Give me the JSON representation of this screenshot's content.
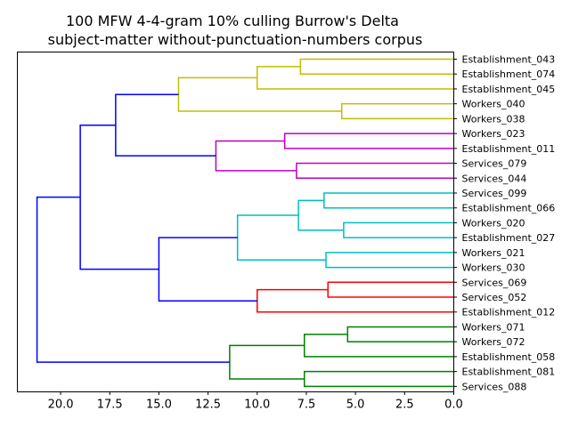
{
  "chart_data": {
    "type": "dendrogram",
    "title": "100 MFW 4-4-gram 10% culling Burrow's Delta",
    "subtitle": "subject-matter without-punctuation-numbers corpus",
    "orientation": "left",
    "xlim": [
      22.2,
      0.0
    ],
    "x_ticks": [
      20.0,
      17.5,
      15.0,
      12.5,
      10.0,
      7.5,
      5.0,
      2.5,
      0.0
    ],
    "x_tick_labels": [
      "20.0",
      "17.5",
      "15.0",
      "12.5",
      "10.0",
      "7.5",
      "5.0",
      "2.5",
      "0.0"
    ],
    "leaves": [
      "Establishment_043",
      "Establishment_074",
      "Establishment_045",
      "Workers_040",
      "Workers_038",
      "Workers_023",
      "Establishment_011",
      "Services_079",
      "Services_044",
      "Services_099",
      "Establishment_066",
      "Workers_020",
      "Establishment_027",
      "Workers_021",
      "Workers_030",
      "Services_069",
      "Services_052",
      "Establishment_012",
      "Workers_071",
      "Workers_072",
      "Establishment_058",
      "Establishment_081",
      "Services_088"
    ],
    "merges": [
      {
        "a": "L0",
        "b": "L1",
        "height": 7.8,
        "color": "#bfbf00"
      },
      {
        "a": "M0",
        "b": "L2",
        "height": 10.0,
        "color": "#bfbf00"
      },
      {
        "a": "L3",
        "b": "L4",
        "height": 5.7,
        "color": "#bfbf00"
      },
      {
        "a": "M1",
        "b": "M2",
        "height": 14.0,
        "color": "#bfbf00"
      },
      {
        "a": "L5",
        "b": "L6",
        "height": 8.6,
        "color": "#bf00bf"
      },
      {
        "a": "L7",
        "b": "L8",
        "height": 8.0,
        "color": "#bf00bf"
      },
      {
        "a": "M4",
        "b": "M5",
        "height": 12.1,
        "color": "#bf00bf"
      },
      {
        "a": "M3",
        "b": "M6",
        "height": 17.2,
        "color": "#0000ff"
      },
      {
        "a": "L9",
        "b": "L10",
        "height": 6.6,
        "color": "#00bfbf"
      },
      {
        "a": "L11",
        "b": "L12",
        "height": 5.6,
        "color": "#00bfbf"
      },
      {
        "a": "M8",
        "b": "M9",
        "height": 7.9,
        "color": "#00bfbf"
      },
      {
        "a": "L13",
        "b": "L14",
        "height": 6.5,
        "color": "#00bfbf"
      },
      {
        "a": "M10",
        "b": "M11",
        "height": 11.0,
        "color": "#00bfbf"
      },
      {
        "a": "L15",
        "b": "L16",
        "height": 6.4,
        "color": "#ff0000"
      },
      {
        "a": "M13",
        "b": "L17",
        "height": 10.0,
        "color": "#ff0000"
      },
      {
        "a": "M12",
        "b": "M14",
        "height": 15.0,
        "color": "#0000ff"
      },
      {
        "a": "M7",
        "b": "M15",
        "height": 19.0,
        "color": "#0000ff"
      },
      {
        "a": "L18",
        "b": "L19",
        "height": 5.4,
        "color": "#008000"
      },
      {
        "a": "M17",
        "b": "L20",
        "height": 7.6,
        "color": "#008000"
      },
      {
        "a": "L21",
        "b": "L22",
        "height": 7.6,
        "color": "#008000"
      },
      {
        "a": "M18",
        "b": "M19",
        "height": 11.4,
        "color": "#008000"
      },
      {
        "a": "M16",
        "b": "M20",
        "height": 21.2,
        "color": "#0000ff"
      }
    ]
  }
}
